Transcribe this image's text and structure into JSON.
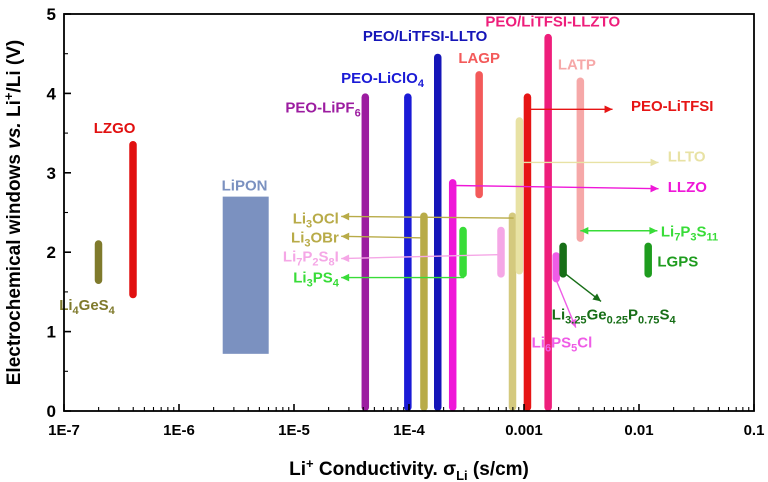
{
  "chart_data": {
    "type": "bar",
    "xscale": "log",
    "xlim_log10": [
      -7,
      -1
    ],
    "ylim": [
      0,
      5
    ],
    "xticks": [
      {
        "log": -7,
        "label": "1E-7"
      },
      {
        "log": -6,
        "label": "1E-6"
      },
      {
        "log": -5,
        "label": "1E-5"
      },
      {
        "log": -4,
        "label": "1E-4"
      },
      {
        "log": -3,
        "label": "0.001"
      },
      {
        "log": -2,
        "label": "0.01"
      },
      {
        "log": -1,
        "label": "0.1"
      }
    ],
    "yticks": [
      "0",
      "1",
      "2",
      "3",
      "4",
      "5"
    ],
    "ylabel": {
      "pre": "Electrochemical windows ",
      "vs": "vs.",
      "post": " Li",
      "sup": "+",
      "end": "/Li (V)"
    },
    "xlabel": {
      "pre": "Li",
      "sup": "+",
      "mid": " Conductivity. σ",
      "sub": "Li",
      "end": " (s/cm)"
    },
    "bars": [
      {
        "id": "li4ges4",
        "log_x": -6.7,
        "ymin": 1.6,
        "ymax": 2.15,
        "color": "#7f7a2c",
        "width": "thin"
      },
      {
        "id": "lzgo",
        "log_x": -6.4,
        "ymin": 1.42,
        "ymax": 3.4,
        "color": "#e11010",
        "width": "thin"
      },
      {
        "id": "lipon",
        "log_x_min": -5.62,
        "log_x_max": -5.22,
        "ymin": 0.72,
        "ymax": 2.7,
        "color": "#7b91c0",
        "shape": "box"
      },
      {
        "id": "peo-lipf6",
        "log_x": -4.38,
        "ymin": 0,
        "ymax": 4.0,
        "color": "#9c1ca0",
        "width": "thin"
      },
      {
        "id": "peo-liclo4",
        "log_x": -4.01,
        "ymin": 0,
        "ymax": 4.0,
        "color": "#1a1ad6",
        "width": "thin"
      },
      {
        "id": "li3ocl",
        "log_x": -3.87,
        "ymin": 0,
        "ymax": 2.5,
        "color": "#b8ab48",
        "width": "thin"
      },
      {
        "id": "peo-litfsi-llto",
        "log_x": -3.75,
        "ymin": 0,
        "ymax": 4.5,
        "color": "#1515b8",
        "width": "thin"
      },
      {
        "id": "llzo",
        "log_x": -3.62,
        "ymin": 0,
        "ymax": 2.92,
        "color": "#ef17d8",
        "width": "thin"
      },
      {
        "id": "li3ps4",
        "log_x": -3.53,
        "ymin": 1.68,
        "ymax": 2.32,
        "color": "#38dc38",
        "width": "thin"
      },
      {
        "id": "lagp",
        "log_x": -3.39,
        "ymin": 2.68,
        "ymax": 4.28,
        "color": "#f35a5a",
        "width": "thin"
      },
      {
        "id": "li7p2s8i",
        "log_x": -3.2,
        "ymin": 1.68,
        "ymax": 2.32,
        "color": "#f5a7e6",
        "width": "thin"
      },
      {
        "id": "li3obr",
        "log_x": -3.1,
        "ymin": 0,
        "ymax": 2.5,
        "color": "#d4c97e",
        "width": "thin"
      },
      {
        "id": "llto",
        "log_x": -3.04,
        "ymin": 1.72,
        "ymax": 3.7,
        "color": "#e8e2a4",
        "width": "thin"
      },
      {
        "id": "peo-litfsi",
        "log_x": -2.97,
        "ymin": 0,
        "ymax": 4.0,
        "color": "#e61515",
        "width": "thin"
      },
      {
        "id": "peo-litfsi-llzto",
        "log_x": -2.79,
        "ymin": 0,
        "ymax": 4.75,
        "color": "#ee1e7b",
        "width": "thin"
      },
      {
        "id": "li6ps5cl",
        "log_x": -2.72,
        "ymin": 1.62,
        "ymax": 2.0,
        "color": "#ef5ce6",
        "width": "thin"
      },
      {
        "id": "li3.25ge",
        "log_x": -2.66,
        "ymin": 1.68,
        "ymax": 2.12,
        "color": "#176e17",
        "width": "thin"
      },
      {
        "id": "latp",
        "log_x": -2.51,
        "ymin": 2.13,
        "ymax": 4.2,
        "color": "#f6a8a8",
        "width": "thin"
      },
      {
        "id": "lgps",
        "log_x": -1.92,
        "ymin": 1.68,
        "ymax": 2.12,
        "color": "#1e9c1e",
        "width": "thin"
      }
    ],
    "labels": [
      {
        "id": "label-li4ges4",
        "parts": [
          [
            "Li"
          ],
          [
            "4",
            "sub"
          ],
          [
            "GeS"
          ],
          [
            "4",
            "sub"
          ]
        ],
        "color": "#7f7a2c",
        "anchor": "middle",
        "log_x": -6.8,
        "y": 1.27
      },
      {
        "id": "label-lzgo",
        "parts": [
          [
            "LZGO"
          ]
        ],
        "color": "#e11010",
        "anchor": "middle",
        "log_x": -6.56,
        "y": 3.5
      },
      {
        "id": "label-lipon",
        "parts": [
          [
            "LiPON"
          ]
        ],
        "color": "#7b91c0",
        "anchor": "middle",
        "log_x": -5.43,
        "y": 2.78
      },
      {
        "id": "label-peo-lipf6",
        "parts": [
          [
            "PEO-LiPF"
          ],
          [
            "6",
            "sub"
          ]
        ],
        "color": "#9c1ca0",
        "anchor": "end",
        "log_x": -4.42,
        "y": 3.76
      },
      {
        "id": "label-peo-liclo4",
        "parts": [
          [
            "PEO-LiClO"
          ],
          [
            "4",
            "sub"
          ]
        ],
        "color": "#1a1ad6",
        "anchor": "middle",
        "log_x": -4.23,
        "y": 4.13
      },
      {
        "id": "label-peo-litfsi-llto",
        "parts": [
          [
            "PEO/LiTFSI-LLTO"
          ]
        ],
        "color": "#1515b8",
        "anchor": "middle",
        "log_x": -3.86,
        "y": 4.66
      },
      {
        "id": "label-lagp",
        "parts": [
          [
            "LAGP"
          ]
        ],
        "color": "#f35a5a",
        "anchor": "middle",
        "log_x": -3.39,
        "y": 4.38
      },
      {
        "id": "label-peo-litfsi-llzto",
        "parts": [
          [
            "PEO/LiTFSI-LLZTO"
          ]
        ],
        "color": "#ee1e7b",
        "anchor": "middle",
        "log_x": -2.75,
        "y": 4.84
      },
      {
        "id": "label-latp",
        "parts": [
          [
            "LATP"
          ]
        ],
        "color": "#f6a8a8",
        "anchor": "middle",
        "log_x": -2.54,
        "y": 4.3
      },
      {
        "id": "label-peo-litfsi",
        "parts": [
          [
            "PEO-LiTFSI"
          ]
        ],
        "color": "#e61515",
        "anchor": "start",
        "log_x": -2.07,
        "y": 3.78
      },
      {
        "id": "label-llto",
        "parts": [
          [
            "LLTO"
          ]
        ],
        "color": "#e8e2a4",
        "anchor": "start",
        "log_x": -1.75,
        "y": 3.14
      },
      {
        "id": "label-llzo",
        "parts": [
          [
            "LLZO"
          ]
        ],
        "color": "#ef17d8",
        "anchor": "start",
        "log_x": -1.75,
        "y": 2.76
      },
      {
        "id": "label-li3ocl",
        "parts": [
          [
            "Li"
          ],
          [
            "3",
            "sub"
          ],
          [
            "OCl"
          ]
        ],
        "color": "#b8ab48",
        "anchor": "end",
        "log_x": -4.61,
        "y": 2.36
      },
      {
        "id": "label-li3obr",
        "parts": [
          [
            "Li"
          ],
          [
            "3",
            "sub"
          ],
          [
            "OBr"
          ]
        ],
        "color": "#b8ab48",
        "anchor": "end",
        "log_x": -4.61,
        "y": 2.12
      },
      {
        "id": "label-li7p2s8i",
        "parts": [
          [
            "Li"
          ],
          [
            "7",
            "sub"
          ],
          [
            "P"
          ],
          [
            "2",
            "sub"
          ],
          [
            "S"
          ],
          [
            "8",
            "sub"
          ],
          [
            "I"
          ]
        ],
        "color": "#f5a7e6",
        "anchor": "end",
        "log_x": -4.61,
        "y": 1.88
      },
      {
        "id": "label-li3ps4",
        "parts": [
          [
            "Li"
          ],
          [
            "3",
            "sub"
          ],
          [
            "PS"
          ],
          [
            "4",
            "sub"
          ]
        ],
        "color": "#38dc38",
        "anchor": "end",
        "log_x": -4.61,
        "y": 1.62
      },
      {
        "id": "label-li7p3s11",
        "parts": [
          [
            "Li"
          ],
          [
            "7",
            "sub"
          ],
          [
            "P"
          ],
          [
            "3",
            "sub"
          ],
          [
            "S"
          ],
          [
            "11",
            "sub"
          ]
        ],
        "color": "#38dc38",
        "anchor": "start",
        "log_x": -1.81,
        "y": 2.2
      },
      {
        "id": "label-lgps",
        "parts": [
          [
            "LGPS"
          ]
        ],
        "color": "#1e9c1e",
        "anchor": "start",
        "log_x": -1.84,
        "y": 1.82
      },
      {
        "id": "label-li3.25ge",
        "parts": [
          [
            "Li"
          ],
          [
            "3.25",
            "sub"
          ],
          [
            "Ge"
          ],
          [
            "0.25",
            "sub"
          ],
          [
            "P"
          ],
          [
            "0.75",
            "sub"
          ],
          [
            "S"
          ],
          [
            "4",
            "sub"
          ]
        ],
        "color": "#176e17",
        "anchor": "middle",
        "log_x": -2.22,
        "y": 1.15
      },
      {
        "id": "label-li6ps5cl",
        "parts": [
          [
            "Li"
          ],
          [
            "6",
            "sub"
          ],
          [
            "PS"
          ],
          [
            "5",
            "sub"
          ],
          [
            "Cl"
          ]
        ],
        "color": "#ef5ce6",
        "anchor": "middle",
        "log_x": -2.67,
        "y": 0.8
      }
    ],
    "arrows": [
      {
        "id": "arrow-peo-litfsi",
        "color": "#e61515",
        "x1": -2.97,
        "y1": 3.8,
        "x2": -2.23,
        "y2": 3.8,
        "heads": "end"
      },
      {
        "id": "arrow-llto",
        "color": "#e8e2a4",
        "x1": -3.03,
        "y1": 3.13,
        "x2": -1.83,
        "y2": 3.13,
        "heads": "end"
      },
      {
        "id": "arrow-llzo",
        "color": "#ef17d8",
        "x1": -3.61,
        "y1": 2.84,
        "x2": -1.83,
        "y2": 2.8,
        "heads": "end"
      },
      {
        "id": "arrow-li3ocl",
        "color": "#b8ab48",
        "x1": -3.09,
        "y1": 2.43,
        "x2": -4.59,
        "y2": 2.45,
        "heads": "end"
      },
      {
        "id": "arrow-li3obr",
        "color": "#b8ab48",
        "x1": -3.86,
        "y1": 2.18,
        "x2": -4.59,
        "y2": 2.2,
        "heads": "end"
      },
      {
        "id": "arrow-li7p2s8i",
        "color": "#f5a7e6",
        "x1": -3.19,
        "y1": 1.97,
        "x2": -4.59,
        "y2": 1.92,
        "heads": "end"
      },
      {
        "id": "arrow-li3ps4",
        "color": "#38dc38",
        "x1": -3.52,
        "y1": 1.68,
        "x2": -4.59,
        "y2": 1.68,
        "heads": "end"
      },
      {
        "id": "arrow-li7p3s11",
        "color": "#38dc38",
        "x1": -2.51,
        "y1": 2.27,
        "x2": -1.84,
        "y2": 2.27,
        "heads": "both"
      },
      {
        "id": "arrow-li3.25ge",
        "color": "#176e17",
        "x1": -2.66,
        "y1": 1.75,
        "x2": -2.33,
        "y2": 1.38,
        "heads": "end"
      },
      {
        "id": "arrow-li6ps5cl",
        "color": "#ef5ce6",
        "x1": -2.72,
        "y1": 1.65,
        "x2": -2.55,
        "y2": 1.05,
        "heads": "end"
      }
    ]
  }
}
